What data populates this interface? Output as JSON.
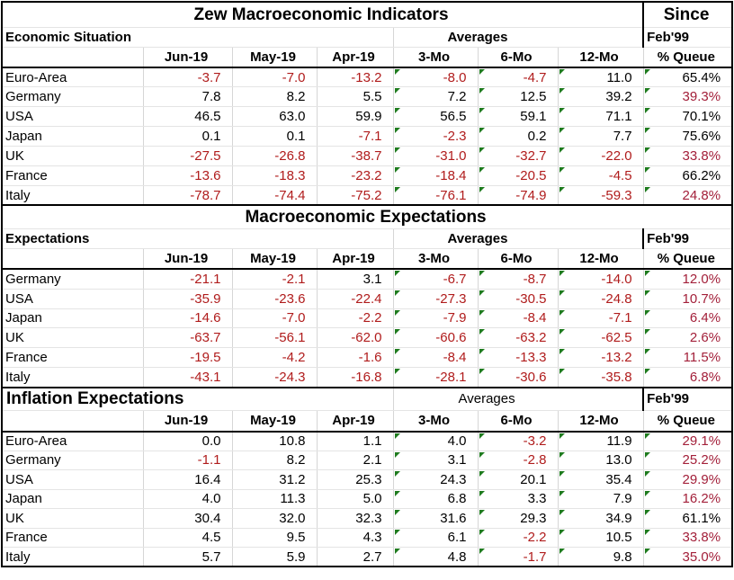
{
  "sections": [
    {
      "title": "Zew Macroeconomic Indicators",
      "since": "Since",
      "subheader": "Economic Situation",
      "averages": "Averages",
      "since_date": "Feb'99",
      "columns": [
        "Jun-19",
        "May-19",
        "Apr-19",
        "3-Mo",
        "6-Mo",
        "12-Mo",
        "% Queue"
      ],
      "rows": [
        {
          "label": "Euro-Area",
          "values": [
            "-3.7",
            "-7.0",
            "-13.2",
            "-8.0",
            "-4.7",
            "11.0",
            "65.4%"
          ]
        },
        {
          "label": "Germany",
          "values": [
            "7.8",
            "8.2",
            "5.5",
            "7.2",
            "12.5",
            "39.2",
            "39.3%"
          ]
        },
        {
          "label": "USA",
          "values": [
            "46.5",
            "63.0",
            "59.9",
            "56.5",
            "59.1",
            "71.1",
            "70.1%"
          ]
        },
        {
          "label": "Japan",
          "values": [
            "0.1",
            "0.1",
            "-7.1",
            "-2.3",
            "0.2",
            "7.7",
            "75.6%"
          ]
        },
        {
          "label": "UK",
          "values": [
            "-27.5",
            "-26.8",
            "-38.7",
            "-31.0",
            "-32.7",
            "-22.0",
            "33.8%"
          ]
        },
        {
          "label": "France",
          "values": [
            "-13.6",
            "-18.3",
            "-23.2",
            "-18.4",
            "-20.5",
            "-4.5",
            "66.2%"
          ]
        },
        {
          "label": "Italy",
          "values": [
            "-78.7",
            "-74.4",
            "-75.2",
            "-76.1",
            "-74.9",
            "-59.3",
            "24.8%"
          ]
        }
      ]
    },
    {
      "title": "Macroeconomic Expectations",
      "subheader": "Expectations",
      "averages": "Averages",
      "since_date": "Feb'99",
      "columns": [
        "Jun-19",
        "May-19",
        "Apr-19",
        "3-Mo",
        "6-Mo",
        "12-Mo",
        "% Queue"
      ],
      "rows": [
        {
          "label": "Germany",
          "values": [
            "-21.1",
            "-2.1",
            "3.1",
            "-6.7",
            "-8.7",
            "-14.0",
            "12.0%"
          ]
        },
        {
          "label": "USA",
          "values": [
            "-35.9",
            "-23.6",
            "-22.4",
            "-27.3",
            "-30.5",
            "-24.8",
            "10.7%"
          ]
        },
        {
          "label": "Japan",
          "values": [
            "-14.6",
            "-7.0",
            "-2.2",
            "-7.9",
            "-8.4",
            "-7.1",
            "6.4%"
          ]
        },
        {
          "label": "UK",
          "values": [
            "-63.7",
            "-56.1",
            "-62.0",
            "-60.6",
            "-63.2",
            "-62.5",
            "2.6%"
          ]
        },
        {
          "label": "France",
          "values": [
            "-19.5",
            "-4.2",
            "-1.6",
            "-8.4",
            "-13.3",
            "-13.2",
            "11.5%"
          ]
        },
        {
          "label": "Italy",
          "values": [
            "-43.1",
            "-24.3",
            "-16.8",
            "-28.1",
            "-30.6",
            "-35.8",
            "6.8%"
          ]
        }
      ]
    },
    {
      "title": "Inflation Expectations",
      "averages": "Averages",
      "since_date": "Feb'99",
      "columns": [
        "Jun-19",
        "May-19",
        "Apr-19",
        "3-Mo",
        "6-Mo",
        "12-Mo",
        "% Queue"
      ],
      "rows": [
        {
          "label": "Euro-Area",
          "values": [
            "0.0",
            "10.8",
            "1.1",
            "4.0",
            "-3.2",
            "11.9",
            "29.1%"
          ]
        },
        {
          "label": "Germany",
          "values": [
            "-1.1",
            "8.2",
            "2.1",
            "3.1",
            "-2.8",
            "13.0",
            "25.2%"
          ]
        },
        {
          "label": "USA",
          "values": [
            "16.4",
            "31.2",
            "25.3",
            "24.3",
            "20.1",
            "35.4",
            "29.9%"
          ]
        },
        {
          "label": "Japan",
          "values": [
            "4.0",
            "11.3",
            "5.0",
            "6.8",
            "3.3",
            "7.9",
            "16.2%"
          ]
        },
        {
          "label": "UK",
          "values": [
            "30.4",
            "32.0",
            "32.3",
            "31.6",
            "29.3",
            "34.9",
            "61.1%"
          ]
        },
        {
          "label": "France",
          "values": [
            "4.5",
            "9.5",
            "4.3",
            "6.1",
            "-2.2",
            "10.5",
            "33.8%"
          ]
        },
        {
          "label": "Italy",
          "values": [
            "5.7",
            "5.9",
            "2.7",
            "4.8",
            "-1.7",
            "9.8",
            "35.0%"
          ]
        }
      ]
    }
  ],
  "colors": {
    "negative": "#b01c1c",
    "queue_low": "#a3203a",
    "marker": "#1e7b1e",
    "border": "#000000"
  }
}
